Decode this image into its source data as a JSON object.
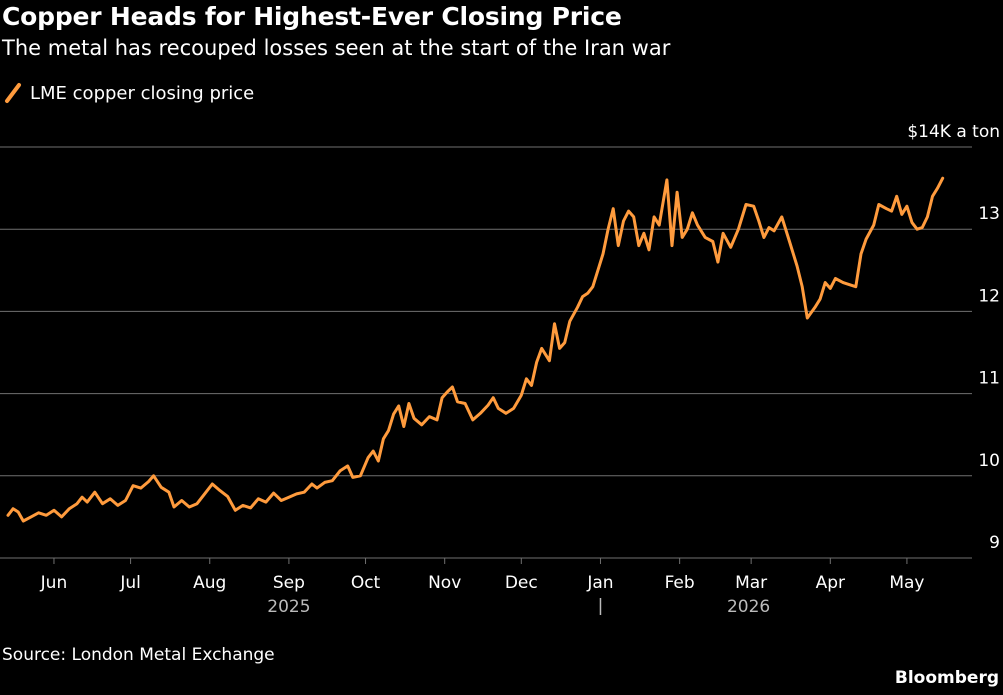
{
  "title": "Copper Heads for Highest-Ever Closing Price",
  "subtitle": "The metal has recouped losses seen at the start of the Iran war",
  "source": "Source: London Metal Exchange",
  "brand": "Bloomberg",
  "colors": {
    "line": "#ff9b3d",
    "grid": "#707070",
    "background": "#000000",
    "text": "#ffffff"
  },
  "chart_data": {
    "type": "line",
    "legend": "LME copper closing price",
    "legend_position": "top-left",
    "y_unit_label": "$14K a ton",
    "ylim": [
      9,
      14
    ],
    "y_ticks": [
      9,
      10,
      11,
      12,
      13,
      14
    ],
    "y_tick_labels": [
      "9",
      "10",
      "11",
      "12",
      "13",
      "$14K a ton"
    ],
    "grid": true,
    "x_range": [
      "2025-05-14",
      "2026-05-21"
    ],
    "x_ticks": [
      {
        "date": "2025-06-01",
        "label": "Jun"
      },
      {
        "date": "2025-07-01",
        "label": "Jul"
      },
      {
        "date": "2025-08-01",
        "label": "Aug"
      },
      {
        "date": "2025-09-01",
        "label": "Sep"
      },
      {
        "date": "2025-10-01",
        "label": "Oct"
      },
      {
        "date": "2025-11-01",
        "label": "Nov"
      },
      {
        "date": "2025-12-01",
        "label": "Dec"
      },
      {
        "date": "2026-01-01",
        "label": "Jan"
      },
      {
        "date": "2026-02-01",
        "label": "Feb"
      },
      {
        "date": "2026-03-01",
        "label": "Mar"
      },
      {
        "date": "2026-04-01",
        "label": "Apr"
      },
      {
        "date": "2026-05-01",
        "label": "May"
      }
    ],
    "year_labels": [
      {
        "label": "2025",
        "date": "2025-09-01"
      },
      {
        "label": "2026",
        "date": "2026-02-28"
      }
    ],
    "year_divider": "2026-01-01",
    "series": [
      {
        "name": "LME copper closing price",
        "points": [
          [
            "2025-05-14",
            9.52
          ],
          [
            "2025-05-16",
            9.6
          ],
          [
            "2025-05-18",
            9.56
          ],
          [
            "2025-05-20",
            9.45
          ],
          [
            "2025-05-23",
            9.5
          ],
          [
            "2025-05-26",
            9.55
          ],
          [
            "2025-05-29",
            9.52
          ],
          [
            "2025-06-01",
            9.58
          ],
          [
            "2025-06-04",
            9.5
          ],
          [
            "2025-06-07",
            9.6
          ],
          [
            "2025-06-10",
            9.66
          ],
          [
            "2025-06-12",
            9.74
          ],
          [
            "2025-06-14",
            9.68
          ],
          [
            "2025-06-17",
            9.8
          ],
          [
            "2025-06-20",
            9.66
          ],
          [
            "2025-06-23",
            9.72
          ],
          [
            "2025-06-26",
            9.64
          ],
          [
            "2025-06-29",
            9.7
          ],
          [
            "2025-07-02",
            9.88
          ],
          [
            "2025-07-05",
            9.85
          ],
          [
            "2025-07-08",
            9.93
          ],
          [
            "2025-07-10",
            10.0
          ],
          [
            "2025-07-13",
            9.86
          ],
          [
            "2025-07-16",
            9.8
          ],
          [
            "2025-07-18",
            9.62
          ],
          [
            "2025-07-21",
            9.7
          ],
          [
            "2025-07-24",
            9.62
          ],
          [
            "2025-07-27",
            9.66
          ],
          [
            "2025-07-30",
            9.78
          ],
          [
            "2025-08-02",
            9.9
          ],
          [
            "2025-08-05",
            9.82
          ],
          [
            "2025-08-08",
            9.75
          ],
          [
            "2025-08-11",
            9.58
          ],
          [
            "2025-08-14",
            9.64
          ],
          [
            "2025-08-17",
            9.61
          ],
          [
            "2025-08-20",
            9.72
          ],
          [
            "2025-08-23",
            9.68
          ],
          [
            "2025-08-26",
            9.79
          ],
          [
            "2025-08-29",
            9.7
          ],
          [
            "2025-09-01",
            9.74
          ],
          [
            "2025-09-04",
            9.78
          ],
          [
            "2025-09-07",
            9.8
          ],
          [
            "2025-09-10",
            9.9
          ],
          [
            "2025-09-12",
            9.85
          ],
          [
            "2025-09-15",
            9.92
          ],
          [
            "2025-09-18",
            9.94
          ],
          [
            "2025-09-21",
            10.06
          ],
          [
            "2025-09-24",
            10.12
          ],
          [
            "2025-09-26",
            9.98
          ],
          [
            "2025-09-29",
            10.0
          ],
          [
            "2025-10-02",
            10.22
          ],
          [
            "2025-10-04",
            10.3
          ],
          [
            "2025-10-06",
            10.18
          ],
          [
            "2025-10-08",
            10.45
          ],
          [
            "2025-10-10",
            10.55
          ],
          [
            "2025-10-12",
            10.75
          ],
          [
            "2025-10-14",
            10.85
          ],
          [
            "2025-10-16",
            10.6
          ],
          [
            "2025-10-18",
            10.88
          ],
          [
            "2025-10-20",
            10.7
          ],
          [
            "2025-10-23",
            10.62
          ],
          [
            "2025-10-26",
            10.72
          ],
          [
            "2025-10-29",
            10.68
          ],
          [
            "2025-10-31",
            10.95
          ],
          [
            "2025-11-02",
            11.02
          ],
          [
            "2025-11-04",
            11.08
          ],
          [
            "2025-11-06",
            10.9
          ],
          [
            "2025-11-09",
            10.88
          ],
          [
            "2025-11-12",
            10.68
          ],
          [
            "2025-11-15",
            10.76
          ],
          [
            "2025-11-18",
            10.86
          ],
          [
            "2025-11-20",
            10.95
          ],
          [
            "2025-11-22",
            10.82
          ],
          [
            "2025-11-25",
            10.76
          ],
          [
            "2025-11-28",
            10.82
          ],
          [
            "2025-12-01",
            10.98
          ],
          [
            "2025-12-03",
            11.18
          ],
          [
            "2025-12-05",
            11.1
          ],
          [
            "2025-12-07",
            11.38
          ],
          [
            "2025-12-09",
            11.55
          ],
          [
            "2025-12-12",
            11.4
          ],
          [
            "2025-12-14",
            11.85
          ],
          [
            "2025-12-16",
            11.55
          ],
          [
            "2025-12-18",
            11.62
          ],
          [
            "2025-12-20",
            11.88
          ],
          [
            "2025-12-23",
            12.05
          ],
          [
            "2025-12-25",
            12.18
          ],
          [
            "2025-12-27",
            12.22
          ],
          [
            "2025-12-29",
            12.3
          ],
          [
            "2025-12-31",
            12.5
          ],
          [
            "2026-01-02",
            12.7
          ],
          [
            "2026-01-04",
            13.0
          ],
          [
            "2026-01-06",
            13.25
          ],
          [
            "2026-01-08",
            12.8
          ],
          [
            "2026-01-10",
            13.1
          ],
          [
            "2026-01-12",
            13.22
          ],
          [
            "2026-01-14",
            13.15
          ],
          [
            "2026-01-16",
            12.8
          ],
          [
            "2026-01-18",
            12.95
          ],
          [
            "2026-01-20",
            12.75
          ],
          [
            "2026-01-22",
            13.15
          ],
          [
            "2026-01-24",
            13.05
          ],
          [
            "2026-01-27",
            13.6
          ],
          [
            "2026-01-29",
            12.8
          ],
          [
            "2026-01-31",
            13.45
          ],
          [
            "2026-02-02",
            12.9
          ],
          [
            "2026-02-04",
            13.0
          ],
          [
            "2026-02-06",
            13.2
          ],
          [
            "2026-02-08",
            13.05
          ],
          [
            "2026-02-11",
            12.9
          ],
          [
            "2026-02-14",
            12.85
          ],
          [
            "2026-02-16",
            12.6
          ],
          [
            "2026-02-18",
            12.95
          ],
          [
            "2026-02-21",
            12.78
          ],
          [
            "2026-02-24",
            13.0
          ],
          [
            "2026-02-27",
            13.3
          ],
          [
            "2026-03-02",
            13.28
          ],
          [
            "2026-03-04",
            13.1
          ],
          [
            "2026-03-06",
            12.9
          ],
          [
            "2026-03-08",
            13.02
          ],
          [
            "2026-03-10",
            12.98
          ],
          [
            "2026-03-13",
            13.15
          ],
          [
            "2026-03-16",
            12.85
          ],
          [
            "2026-03-19",
            12.55
          ],
          [
            "2026-03-21",
            12.3
          ],
          [
            "2026-03-23",
            11.92
          ],
          [
            "2026-03-26",
            12.05
          ],
          [
            "2026-03-28",
            12.15
          ],
          [
            "2026-03-30",
            12.35
          ],
          [
            "2026-04-01",
            12.28
          ],
          [
            "2026-04-03",
            12.4
          ],
          [
            "2026-04-06",
            12.35
          ],
          [
            "2026-04-09",
            12.32
          ],
          [
            "2026-04-11",
            12.3
          ],
          [
            "2026-04-13",
            12.7
          ],
          [
            "2026-04-15",
            12.88
          ],
          [
            "2026-04-18",
            13.05
          ],
          [
            "2026-04-20",
            13.3
          ],
          [
            "2026-04-23",
            13.25
          ],
          [
            "2026-04-25",
            13.22
          ],
          [
            "2026-04-27",
            13.4
          ],
          [
            "2026-04-29",
            13.18
          ],
          [
            "2026-05-01",
            13.28
          ],
          [
            "2026-05-03",
            13.08
          ],
          [
            "2026-05-05",
            13.0
          ],
          [
            "2026-05-07",
            13.02
          ],
          [
            "2026-05-09",
            13.15
          ],
          [
            "2026-05-11",
            13.4
          ],
          [
            "2026-05-13",
            13.5
          ],
          [
            "2026-05-15",
            13.62
          ]
        ]
      }
    ]
  }
}
